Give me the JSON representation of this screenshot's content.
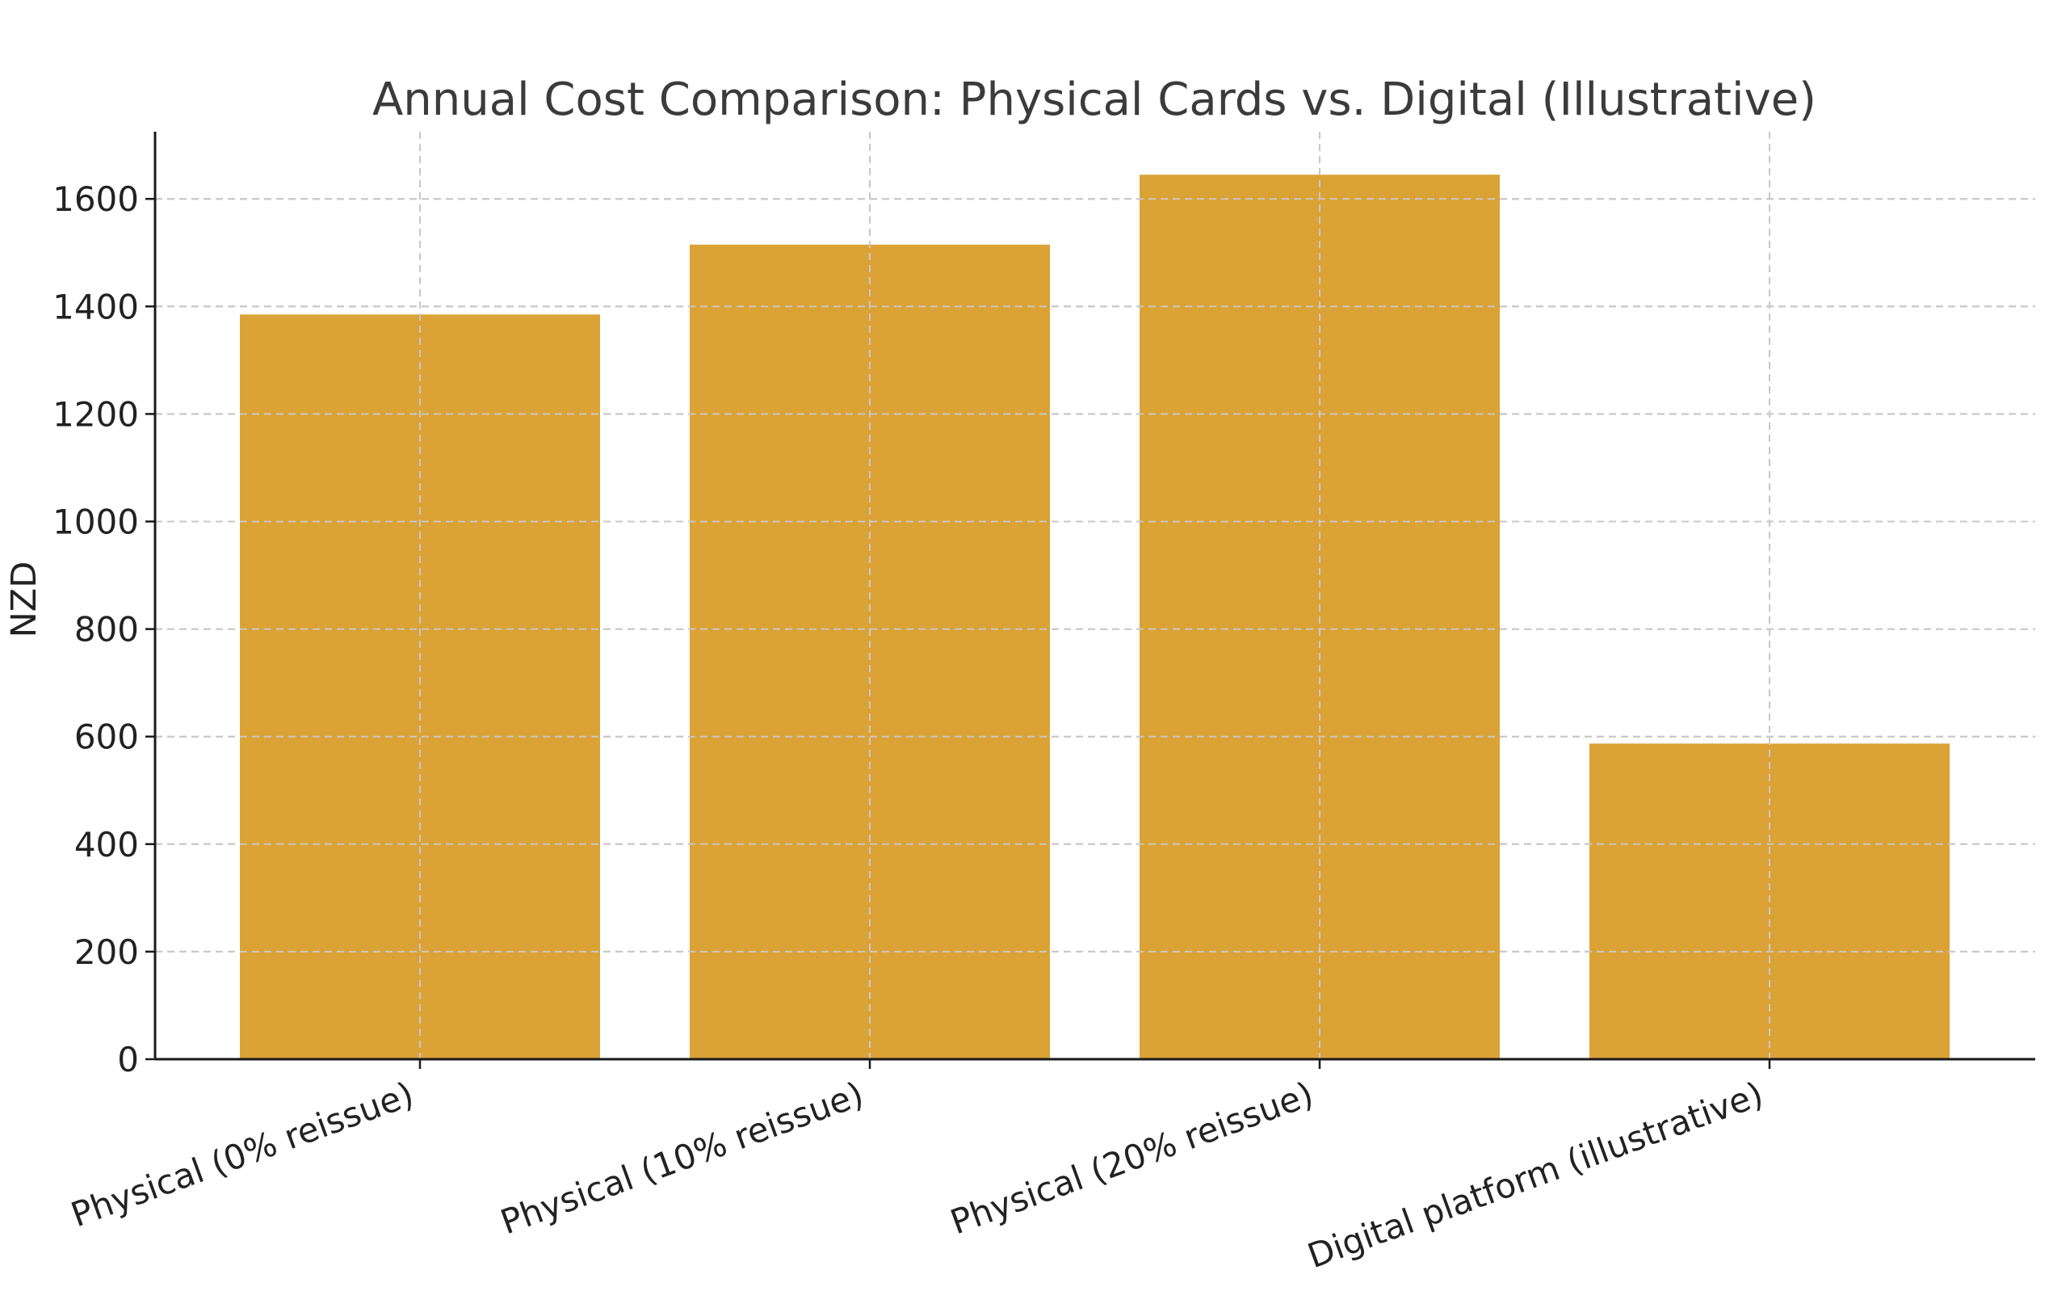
{
  "chart_data": {
    "type": "bar",
    "title": "Annual Cost Comparison: Physical Cards vs. Digital (Illustrative)",
    "xlabel": "",
    "ylabel": "NZD",
    "categories": [
      "Physical (0% reissue)",
      "Physical (10% reissue)",
      "Physical (20% reissue)",
      "Digital platform (illustrative)"
    ],
    "values": [
      1385,
      1515,
      1645,
      587
    ],
    "ylim": [
      0,
      1725
    ],
    "yticks": [
      0,
      200,
      400,
      600,
      800,
      1000,
      1200,
      1400,
      1600
    ],
    "grid": true,
    "bar_color": "#dba236"
  }
}
